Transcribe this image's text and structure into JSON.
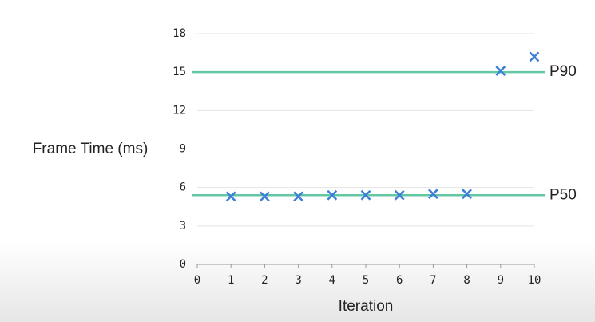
{
  "chart_data": {
    "type": "scatter",
    "y_label": "Frame Time (ms)",
    "x_label": "Iteration",
    "x": [
      1,
      2,
      3,
      4,
      5,
      6,
      7,
      8,
      9,
      10
    ],
    "values": [
      5.3,
      5.3,
      5.3,
      5.4,
      5.4,
      5.4,
      5.5,
      5.5,
      15.1,
      16.2
    ],
    "color": "#3b7fd6",
    "xlim": [
      0,
      10
    ],
    "xticks": [
      0,
      1,
      2,
      3,
      4,
      5,
      6,
      7,
      8,
      9,
      10
    ],
    "ylim": [
      0,
      18
    ],
    "yticks": [
      0,
      3,
      6,
      9,
      12,
      15,
      18
    ],
    "grid": true,
    "reference_lines": [
      {
        "name": "P90",
        "value": 15,
        "color": "#63c7a4"
      },
      {
        "name": "P50",
        "value": 5.4,
        "color": "#63c7a4"
      }
    ]
  }
}
